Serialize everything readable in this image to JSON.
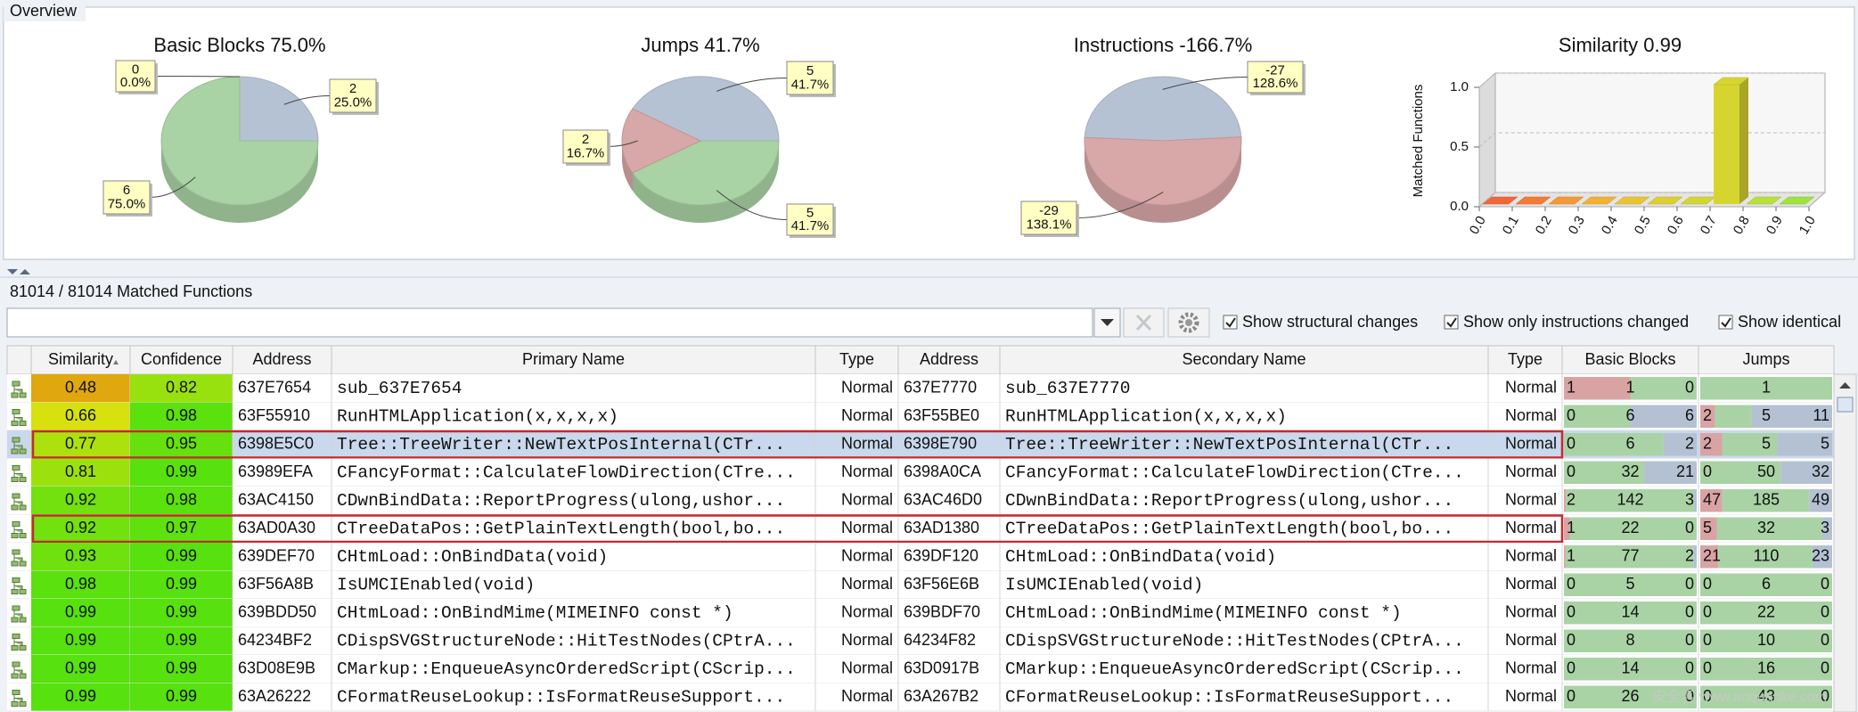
{
  "overview": {
    "title": "Overview",
    "pies": [
      {
        "title": "Basic Blocks 75.0%",
        "slices": [
          {
            "count": 2,
            "share": "25.0%",
            "color": "#b5c2d3"
          },
          {
            "count": 6,
            "share": "75.0%",
            "color": "#a9d2a5"
          },
          {
            "count": 0,
            "share": "0.0%",
            "color": "#d8a7a7"
          }
        ]
      },
      {
        "title": "Jumps 41.7%",
        "slices": [
          {
            "count": 5,
            "share": "41.7%",
            "color": "#b5c2d3"
          },
          {
            "count": 5,
            "share": "41.7%",
            "color": "#a9d2a5"
          },
          {
            "count": 2,
            "share": "16.7%",
            "color": "#d8a7a7"
          }
        ]
      },
      {
        "title": "Instructions -166.7%",
        "slices": [
          {
            "count": -27,
            "share": "128.6%",
            "color": "#b5c2d3"
          },
          {
            "count": -29,
            "share": "138.1%",
            "color": "#d8a7a7"
          }
        ]
      }
    ],
    "histogram": {
      "title": "Similarity 0.99",
      "ylabel": "Matched Functions",
      "bins": [
        0,
        0.1,
        0.2,
        0.3,
        0.4,
        0.5,
        0.6,
        0.7,
        0.8,
        0.9,
        1.0
      ],
      "values": [
        0,
        0,
        0,
        0,
        0,
        0,
        0,
        1.0,
        0,
        0
      ],
      "colors": [
        "#f2673a",
        "#f47a36",
        "#f39a34",
        "#f1b233",
        "#e9c434",
        "#dccf33",
        "#d3d534",
        "#d6d52f",
        "#b9e03a",
        "#9fe33f"
      ],
      "xlim": [
        0,
        1.0
      ],
      "xticks": [
        {
          "value": 0,
          "label": "0.0"
        },
        {
          "value": 0.1,
          "label": "0.1"
        },
        {
          "value": 0.2,
          "label": "0.2"
        },
        {
          "value": 0.3,
          "label": "0.3"
        },
        {
          "value": 0.4,
          "label": "0.4"
        },
        {
          "value": 0.5,
          "label": "0.5"
        },
        {
          "value": 0.6,
          "label": "0.6"
        },
        {
          "value": 0.7,
          "label": "0.7"
        },
        {
          "value": 0.8,
          "label": "0.8"
        },
        {
          "value": 0.9,
          "label": "0.9"
        },
        {
          "value": 1.0,
          "label": "1.0"
        }
      ],
      "ylim": [
        0,
        1.0
      ],
      "yticks": [
        {
          "value": 0,
          "label": "0.0"
        },
        {
          "value": 0.5,
          "label": "0.5"
        },
        {
          "value": 1.0,
          "label": "1.0"
        }
      ]
    }
  },
  "matches": {
    "title": "81014 / 81014 Matched Functions",
    "options": [
      {
        "label": "Show structural changes",
        "checked": true
      },
      {
        "label": "Show only instructions changed",
        "checked": true
      },
      {
        "label": "Show identical",
        "checked": true
      }
    ],
    "columns": [
      "Similarity",
      "Confidence",
      "Address",
      "Primary Name",
      "Type",
      "Address",
      "Secondary Name",
      "Type",
      "Basic Blocks",
      "Jumps"
    ],
    "rows": [
      {
        "similarity": 0.48,
        "confidence": 0.82,
        "primary_address": "637E7654",
        "primary_name": "sub_637E7654",
        "primary_type": "Normal",
        "secondary_address": "637E7770",
        "secondary_name": "sub_637E7770",
        "secondary_type": "Normal",
        "basic_blocks": [
          1,
          1,
          0
        ],
        "jumps": [
          null,
          1,
          null
        ]
      },
      {
        "similarity": 0.66,
        "confidence": 0.98,
        "primary_address": "63F55910",
        "primary_name": "RunHTMLApplication(x,x,x,x)",
        "primary_type": "Normal",
        "secondary_address": "63F55BE0",
        "secondary_name": "RunHTMLApplication(x,x,x,x)",
        "secondary_type": "Normal",
        "basic_blocks": [
          0,
          6,
          6
        ],
        "jumps": [
          2,
          5,
          11
        ]
      },
      {
        "similarity": 0.77,
        "confidence": 0.95,
        "primary_address": "6398E5C0",
        "primary_name": "Tree::TreeWriter::NewTextPosInternal(CTr...",
        "primary_type": "Normal",
        "secondary_address": "6398E790",
        "secondary_name": "Tree::TreeWriter::NewTextPosInternal(CTr...",
        "secondary_type": "Normal",
        "basic_blocks": [
          0,
          6,
          2
        ],
        "jumps": [
          2,
          5,
          5
        ],
        "selected": true,
        "outlined": true
      },
      {
        "similarity": 0.81,
        "confidence": 0.99,
        "primary_address": "63989EFA",
        "primary_name": "CFancyFormat::CalculateFlowDirection(CTre...",
        "primary_type": "Normal",
        "secondary_address": "6398A0CA",
        "secondary_name": "CFancyFormat::CalculateFlowDirection(CTre...",
        "secondary_type": "Normal",
        "basic_blocks": [
          0,
          32,
          21
        ],
        "jumps": [
          0,
          50,
          32
        ]
      },
      {
        "similarity": 0.92,
        "confidence": 0.98,
        "primary_address": "63AC4150",
        "primary_name": "CDwnBindData::ReportProgress(ulong,ushor...",
        "primary_type": "Normal",
        "secondary_address": "63AC46D0",
        "secondary_name": "CDwnBindData::ReportProgress(ulong,ushor...",
        "secondary_type": "Normal",
        "basic_blocks": [
          2,
          142,
          3
        ],
        "jumps": [
          47,
          185,
          49
        ]
      },
      {
        "similarity": 0.92,
        "confidence": 0.97,
        "primary_address": "63AD0A30",
        "primary_name": "CTreeDataPos::GetPlainTextLength(bool,bo...",
        "primary_type": "Normal",
        "secondary_address": "63AD1380",
        "secondary_name": "CTreeDataPos::GetPlainTextLength(bool,bo...",
        "secondary_type": "Normal",
        "basic_blocks": [
          1,
          22,
          0
        ],
        "jumps": [
          5,
          32,
          3
        ],
        "outlined": true
      },
      {
        "similarity": 0.93,
        "confidence": 0.99,
        "primary_address": "639DEF70",
        "primary_name": "CHtmLoad::OnBindData(void)",
        "primary_type": "Normal",
        "secondary_address": "639DF120",
        "secondary_name": "CHtmLoad::OnBindData(void)",
        "secondary_type": "Normal",
        "basic_blocks": [
          1,
          77,
          2
        ],
        "jumps": [
          21,
          110,
          23
        ]
      },
      {
        "similarity": 0.98,
        "confidence": 0.99,
        "primary_address": "63F56A8B",
        "primary_name": "IsUMCIEnabled(void)",
        "primary_type": "Normal",
        "secondary_address": "63F56E6B",
        "secondary_name": "IsUMCIEnabled(void)",
        "secondary_type": "Normal",
        "basic_blocks": [
          0,
          5,
          0
        ],
        "jumps": [
          0,
          6,
          0
        ]
      },
      {
        "similarity": 0.99,
        "confidence": 0.99,
        "primary_address": "639BDD50",
        "primary_name": "CHtmLoad::OnBindMime(MIMEINFO const *)",
        "primary_type": "Normal",
        "secondary_address": "639BDF70",
        "secondary_name": "CHtmLoad::OnBindMime(MIMEINFO const *)",
        "secondary_type": "Normal",
        "basic_blocks": [
          0,
          14,
          0
        ],
        "jumps": [
          0,
          22,
          0
        ]
      },
      {
        "similarity": 0.99,
        "confidence": 0.99,
        "primary_address": "64234BF2",
        "primary_name": "CDispSVGStructureNode::HitTestNodes(CPtrA...",
        "primary_type": "Normal",
        "secondary_address": "64234F82",
        "secondary_name": "CDispSVGStructureNode::HitTestNodes(CPtrA...",
        "secondary_type": "Normal",
        "basic_blocks": [
          0,
          8,
          0
        ],
        "jumps": [
          0,
          10,
          0
        ]
      },
      {
        "similarity": 0.99,
        "confidence": 0.99,
        "primary_address": "63D08E9B",
        "primary_name": "CMarkup::EnqueueAsyncOrderedScript(CScrip...",
        "primary_type": "Normal",
        "secondary_address": "63D0917B",
        "secondary_name": "CMarkup::EnqueueAsyncOrderedScript(CScrip...",
        "secondary_type": "Normal",
        "basic_blocks": [
          0,
          14,
          0
        ],
        "jumps": [
          0,
          16,
          0
        ]
      },
      {
        "similarity": 0.99,
        "confidence": 0.99,
        "primary_address": "63A26222",
        "primary_name": "CFormatReuseLookup::IsFormatReuseSupport...",
        "primary_type": "Normal",
        "secondary_address": "63A267B2",
        "secondary_name": "CFormatReuseLookup::IsFormatReuseSupport...",
        "secondary_type": "Normal",
        "basic_blocks": [
          0,
          26,
          0
        ],
        "jumps": [
          0,
          43,
          0
        ]
      }
    ]
  },
  "watermark": "安全客 www.anquanke.com"
}
